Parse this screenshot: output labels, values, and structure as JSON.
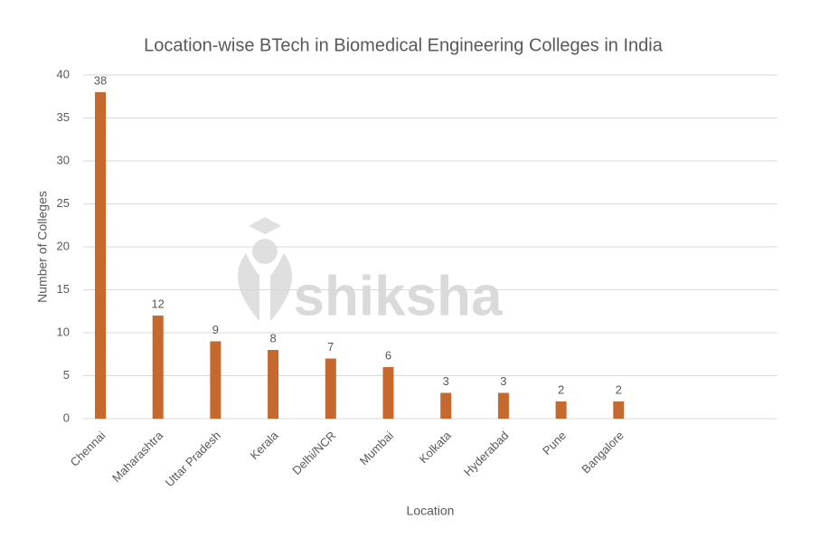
{
  "chart_data": {
    "type": "bar",
    "title": "Location-wise BTech in Biomedical Engineering Colleges in India",
    "watermark": "shiksha",
    "x_label": "Location",
    "y_label": "Number of Colleges",
    "categories": [
      "Chennai",
      "Maharashtra",
      "Uttar Pradesh",
      "Kerala",
      "Delhi/NCR",
      "Mumbai",
      "Kolkata",
      "Hyderabad",
      "Pune",
      "Bangalore"
    ],
    "values": [
      38,
      12,
      9,
      8,
      7,
      6,
      3,
      3,
      2,
      2
    ],
    "color": "#c5692e",
    "ylim": [
      0,
      40
    ],
    "yticks": [
      0,
      5,
      10,
      15,
      20,
      25,
      30,
      35,
      40
    ],
    "grid": true
  }
}
